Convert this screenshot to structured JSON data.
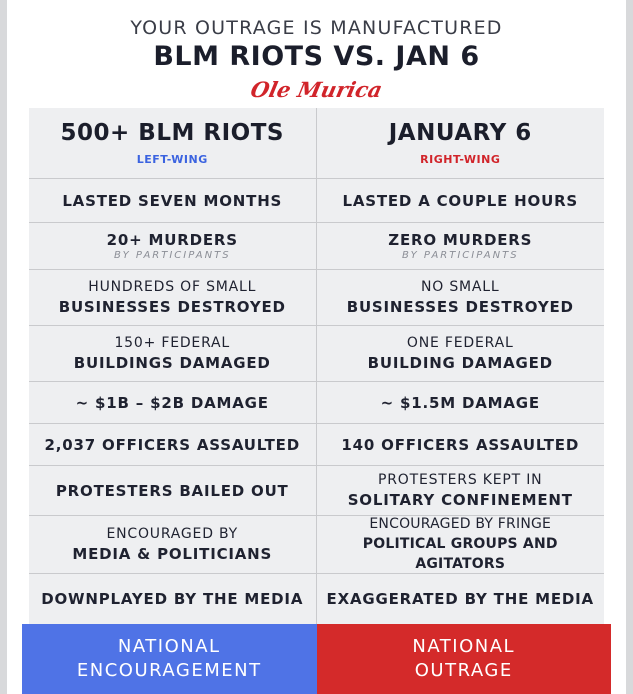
{
  "header": {
    "kicker": "YOUR OUTRAGE IS MANUFACTURED",
    "title": "BLM RIOTS VS. JAN 6",
    "brand": "Ole Murica"
  },
  "columns": {
    "left": {
      "title": "500+ BLM RIOTS",
      "tag": "LEFT-WING"
    },
    "right": {
      "title": "JANUARY 6",
      "tag": "RIGHT-WING"
    }
  },
  "rows": [
    {
      "left": [
        "LASTED SEVEN MONTHS"
      ],
      "right": [
        "LASTED A COUPLE HOURS"
      ]
    },
    {
      "left": [
        "20+ MURDERS"
      ],
      "left_sub": "BY PARTICIPANTS",
      "right": [
        "ZERO MURDERS"
      ],
      "right_sub": "BY PARTICIPANTS"
    },
    {
      "left": [
        "HUNDREDS OF SMALL",
        "BUSINESSES DESTROYED"
      ],
      "right": [
        "NO SMALL",
        "BUSINESSES DESTROYED"
      ]
    },
    {
      "left": [
        "150+ FEDERAL",
        "BUILDINGS DAMAGED"
      ],
      "right": [
        "ONE FEDERAL",
        "BUILDING DAMAGED"
      ]
    },
    {
      "left": [
        "~ $1B – $2B DAMAGE"
      ],
      "right": [
        "~ $1.5M DAMAGE"
      ]
    },
    {
      "left": [
        "2,037 OFFICERS ASSAULTED"
      ],
      "right": [
        "140 OFFICERS ASSAULTED"
      ]
    },
    {
      "left": [
        "PROTESTERS BAILED OUT"
      ],
      "right": [
        "PROTESTERS KEPT IN",
        "SOLITARY CONFINEMENT"
      ]
    },
    {
      "left": [
        "ENCOURAGED BY",
        "MEDIA & POLITICIANS"
      ],
      "right": [
        "ENCOURAGED BY FRINGE",
        "POLITICAL GROUPS AND AGITATORS"
      ]
    },
    {
      "left": [
        "DOWNPLAYED BY THE MEDIA"
      ],
      "right": [
        "EXAGGERATED BY THE MEDIA"
      ]
    }
  ],
  "footer": {
    "left": "NATIONAL\nENCOURAGEMENT",
    "right": "NATIONAL\nOUTRAGE"
  },
  "colors": {
    "left_accent": "#4f73e6",
    "right_accent": "#d42a2a",
    "brand": "#d1242a"
  }
}
